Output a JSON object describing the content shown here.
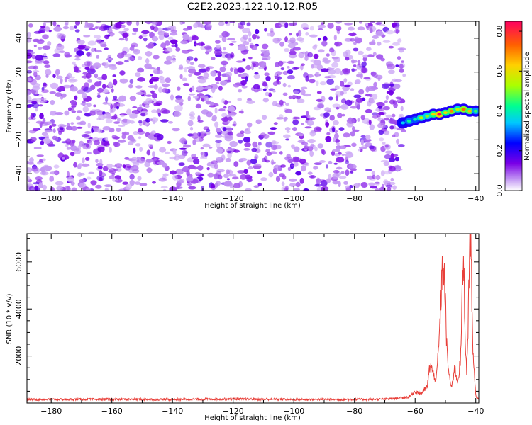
{
  "title": "C2E2.2023.122.10.12.R05",
  "chart_data": [
    {
      "type": "heatmap",
      "title": "C2E2.2023.122.10.12.R05",
      "xlabel": "Height of straight line (km)",
      "ylabel": "Frequency (Hz)",
      "xlim": [
        -188,
        -39
      ],
      "ylim": [
        -50,
        50
      ],
      "x_ticks": [
        -180,
        -160,
        -140,
        -120,
        -100,
        -80,
        -60,
        -40
      ],
      "y_ticks": [
        -40,
        -20,
        0,
        20,
        40
      ],
      "noise_extent": {
        "x": [
          -188,
          -64
        ],
        "y": [
          -50,
          50
        ]
      },
      "signal_track": {
        "x": [
          -64,
          -62,
          -60,
          -58,
          -56,
          -54,
          -52,
          -50,
          -48,
          -46,
          -44,
          -42,
          -40
        ],
        "y": [
          -10,
          -9,
          -8,
          -7,
          -6,
          -5,
          -5,
          -4,
          -3,
          -2,
          -2,
          -3,
          -3
        ],
        "value": [
          0.35,
          0.42,
          0.4,
          0.55,
          0.5,
          0.62,
          0.85,
          0.6,
          0.7,
          0.55,
          0.72,
          0.65,
          0.45
        ]
      },
      "colorbar": {
        "label": "Normalized spectral amplitude",
        "range": [
          0,
          0.85
        ],
        "ticks": [
          "0.0",
          "0.2",
          "0.4",
          "0.6",
          "0.8"
        ],
        "tick_values": [
          0.0,
          0.2,
          0.4,
          0.6,
          0.8
        ]
      },
      "grid": false
    },
    {
      "type": "line",
      "xlabel": "Height of straight line (km)",
      "ylabel": "SNR (10 * v/v)",
      "xlim": [
        -188,
        -39
      ],
      "ylim": [
        0,
        7200
      ],
      "x_ticks": [
        -180,
        -160,
        -140,
        -120,
        -100,
        -80,
        -60,
        -40
      ],
      "y_ticks": [
        2000,
        4000,
        6000
      ],
      "line_color": "#e8403a",
      "series": [
        {
          "x": [
            -188,
            -180,
            -160,
            -140,
            -120,
            -100,
            -80,
            -70,
            -62,
            -60,
            -58,
            -56,
            -55,
            -54,
            -53,
            -52,
            -51.5,
            -51,
            -50.5,
            -50,
            -49.5,
            -49,
            -48,
            -47,
            -46,
            -45,
            -44.5,
            -44,
            -43.5,
            -43,
            -42.5,
            -42,
            -41.5,
            -41,
            -40,
            -39
          ],
          "y": [
            150,
            150,
            160,
            150,
            170,
            150,
            150,
            160,
            250,
            500,
            400,
            700,
            1700,
            1200,
            1000,
            2800,
            4500,
            5600,
            5700,
            4200,
            2200,
            1400,
            600,
            1500,
            900,
            1800,
            4500,
            6300,
            3000,
            1200,
            3500,
            7100,
            6500,
            2200,
            300,
            150
          ]
        }
      ],
      "grid": false
    }
  ]
}
